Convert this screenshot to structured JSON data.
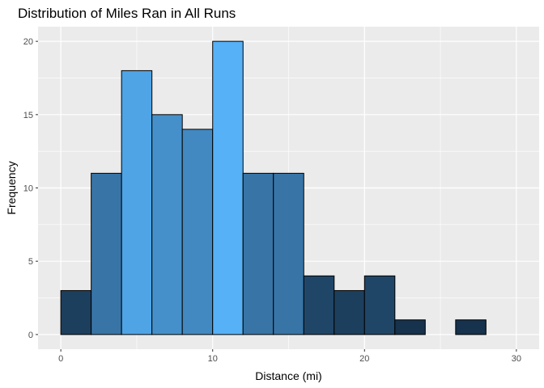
{
  "chart_data": {
    "type": "bar",
    "title": "Distribution of Miles Ran in All Runs",
    "xlabel": "Distance (mi)",
    "ylabel": "Frequency",
    "bin_width": 2,
    "bins": [
      {
        "x0": 0,
        "x1": 2,
        "count": 3
      },
      {
        "x0": 2,
        "x1": 4,
        "count": 11
      },
      {
        "x0": 4,
        "x1": 6,
        "count": 18
      },
      {
        "x0": 6,
        "x1": 8,
        "count": 15
      },
      {
        "x0": 8,
        "x1": 10,
        "count": 14
      },
      {
        "x0": 10,
        "x1": 12,
        "count": 20
      },
      {
        "x0": 12,
        "x1": 14,
        "count": 11
      },
      {
        "x0": 14,
        "x1": 16,
        "count": 11
      },
      {
        "x0": 16,
        "x1": 18,
        "count": 4
      },
      {
        "x0": 18,
        "x1": 20,
        "count": 3
      },
      {
        "x0": 20,
        "x1": 22,
        "count": 4
      },
      {
        "x0": 22,
        "x1": 24,
        "count": 1
      },
      {
        "x0": 24,
        "x1": 26,
        "count": 0
      },
      {
        "x0": 26,
        "x1": 28,
        "count": 1
      },
      {
        "x0": 28,
        "x1": 30,
        "count": 0
      }
    ],
    "xlim": [
      -1.5,
      31.5
    ],
    "ylim": [
      -1,
      21
    ],
    "x_ticks": [
      0,
      10,
      20,
      30
    ],
    "y_ticks": [
      0,
      5,
      10,
      15,
      20
    ],
    "grid": true,
    "fill": "count gradient (dark navy #132B43 to light blue #56B1F7)",
    "colors": {
      "panel_background": "#ebebeb",
      "gridline": "#ffffff",
      "bar_outline": "#000000",
      "fill_low": "#132B43",
      "fill_high": "#56B1F7"
    }
  }
}
